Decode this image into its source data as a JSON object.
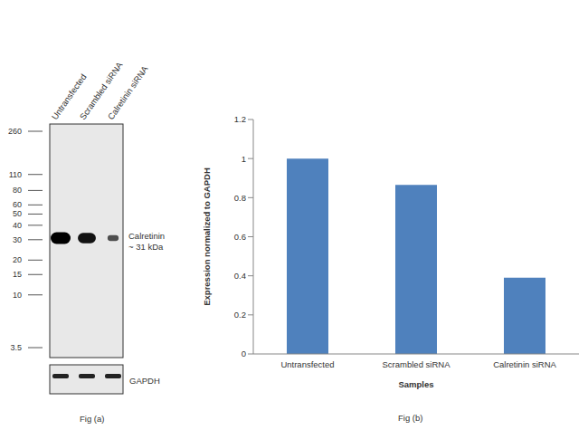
{
  "chart_data": {
    "type": "bar",
    "caption": "Fig (b)",
    "x_label": "Samples",
    "y_label": "Expression  normalized to GAPDH",
    "categories": [
      "Untransfected",
      "Scrambled siRNA",
      "Calretinin siRNA"
    ],
    "values": [
      1.0,
      0.865,
      0.39
    ],
    "color": "#4f81bd",
    "ylim": [
      0,
      1.2
    ],
    "yticks": [
      0,
      0.2,
      0.4,
      0.6,
      0.8,
      1,
      1.2
    ],
    "grid": false
  },
  "blot": {
    "caption": "Fig (a)",
    "lanes": [
      "Untransfected",
      "Scrambled siRNA",
      "Calretinin siRNA"
    ],
    "markers": [
      260,
      110,
      80,
      60,
      50,
      40,
      30,
      20,
      15,
      10,
      3.5
    ],
    "band_label": [
      "Calretinin",
      "~ 31 kDa"
    ],
    "band_kda": 31,
    "loading_control": "GAPDH"
  }
}
